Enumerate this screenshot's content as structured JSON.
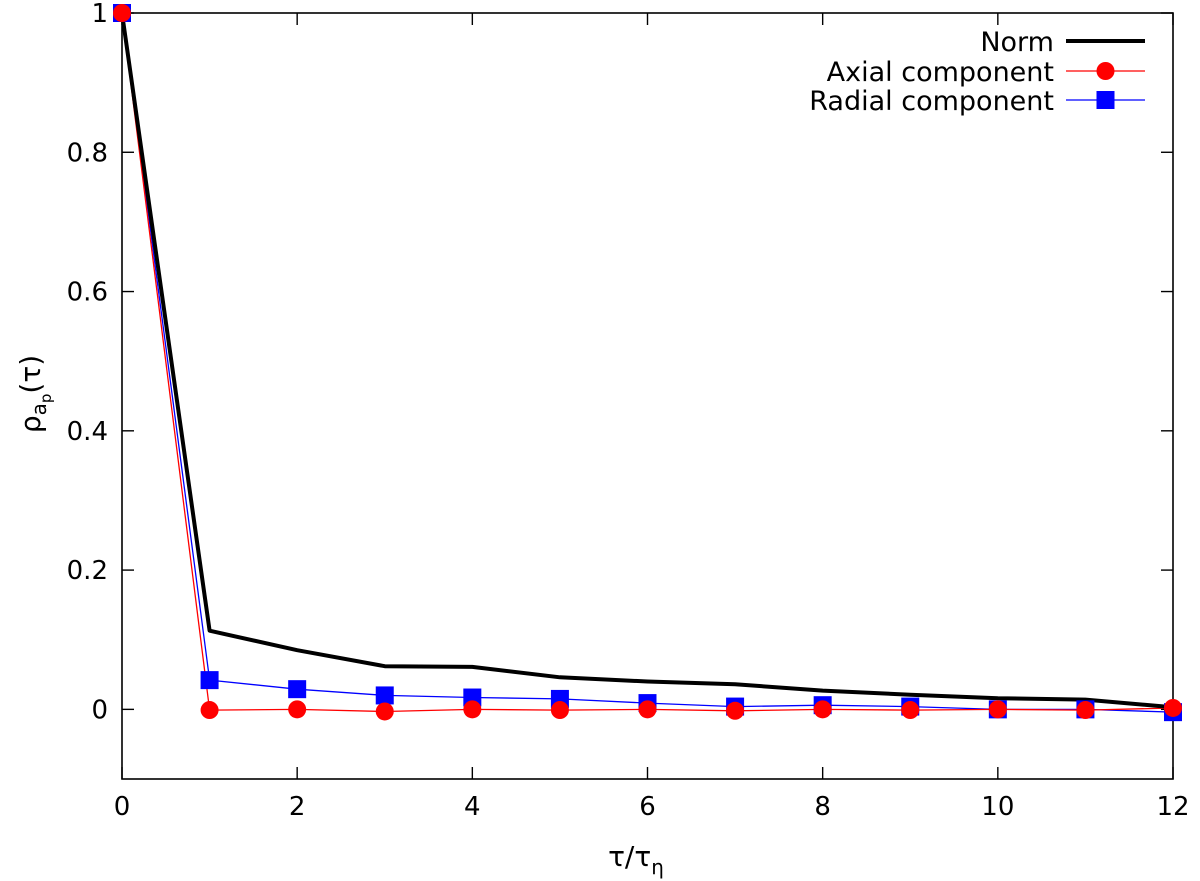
{
  "chart_data": {
    "type": "line",
    "xlabel": {
      "main": "τ/τ",
      "sub": "η"
    },
    "ylabel": {
      "main": "ρ",
      "sub": "a",
      "subsub": "p",
      "tail": "(τ)"
    },
    "xlim": [
      0,
      12
    ],
    "ylim": [
      -0.1,
      1.0
    ],
    "xticks": [
      "0",
      "2",
      "4",
      "6",
      "8",
      "10",
      "12"
    ],
    "yticks": [
      "0",
      "0.2",
      "0.4",
      "0.6",
      "0.8",
      "1"
    ],
    "xtick_values": [
      0,
      2,
      4,
      6,
      8,
      10,
      12
    ],
    "ytick_values": [
      0,
      0.2,
      0.4,
      0.6,
      0.8,
      1.0
    ],
    "grid": false,
    "legend_position": "top-right",
    "x": [
      0,
      1,
      2,
      3,
      4,
      5,
      6,
      7,
      8,
      9,
      10,
      11,
      12
    ],
    "series": [
      {
        "name": "Norm",
        "color": "#000000",
        "marker": "none",
        "values": [
          1.0,
          0.113,
          0.085,
          0.062,
          0.061,
          0.046,
          0.04,
          0.036,
          0.027,
          0.021,
          0.016,
          0.014,
          0.003
        ]
      },
      {
        "name": "Axial component",
        "color": "#ff0000",
        "marker": "circle",
        "values": [
          1.0,
          -0.001,
          0.0,
          -0.003,
          0.0,
          -0.001,
          0.0,
          -0.002,
          0.0,
          -0.001,
          0.0,
          -0.001,
          0.002
        ]
      },
      {
        "name": "Radial component",
        "color": "#0000ff",
        "marker": "square",
        "values": [
          1.0,
          0.042,
          0.029,
          0.02,
          0.017,
          0.015,
          0.009,
          0.004,
          0.006,
          0.004,
          0.0,
          0.0,
          -0.004
        ]
      }
    ]
  }
}
